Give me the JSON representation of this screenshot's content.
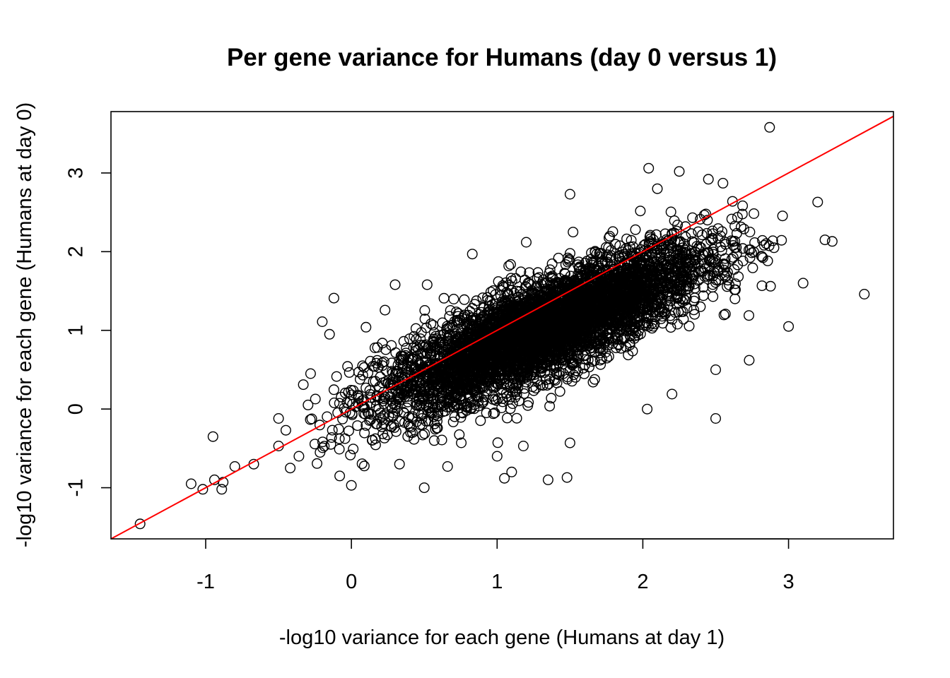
{
  "chart_data": {
    "type": "scatter",
    "title": "Per gene variance for Humans (day 0 versus 1)",
    "xlabel": "-log10 variance for each gene (Humans at day 1)",
    "ylabel": "-log10 variance for each gene (Humans at day 0)",
    "xlim": [
      -1.65,
      3.72
    ],
    "ylim": [
      -1.65,
      3.78
    ],
    "x_ticks": [
      "-1",
      "0",
      "1",
      "2",
      "3"
    ],
    "y_ticks": [
      "-1",
      "0",
      "1",
      "2",
      "3"
    ],
    "marker": "open-circle",
    "point_color": "#000000",
    "reference_line": {
      "intercept": 0,
      "slope": 1,
      "color": "#ff0000"
    },
    "grid": false,
    "points": [
      [
        -1.45,
        -1.46
      ],
      [
        -1.1,
        -0.95
      ],
      [
        -1.02,
        -1.02
      ],
      [
        -0.95,
        -0.35
      ],
      [
        -0.94,
        -0.9
      ],
      [
        -0.89,
        -1.02
      ],
      [
        -0.88,
        -0.93
      ],
      [
        -0.8,
        -0.73
      ],
      [
        -0.67,
        -0.7
      ],
      [
        -0.5,
        -0.12
      ],
      [
        -0.5,
        -0.47
      ],
      [
        -0.45,
        -0.27
      ],
      [
        -0.42,
        -0.75
      ],
      [
        -0.36,
        -0.6
      ],
      [
        -0.33,
        0.31
      ],
      [
        -0.28,
        0.45
      ],
      [
        -0.2,
        1.11
      ],
      [
        -0.15,
        0.95
      ],
      [
        -0.12,
        1.41
      ],
      [
        -0.08,
        -0.85
      ],
      [
        -0.05,
        0.01
      ],
      [
        0.0,
        -0.97
      ],
      [
        0.05,
        0.47
      ],
      [
        0.1,
        1.04
      ],
      [
        0.15,
        0.35
      ],
      [
        0.3,
        1.58
      ],
      [
        0.33,
        -0.7
      ],
      [
        0.5,
        -1.0
      ],
      [
        0.52,
        1.58
      ],
      [
        0.66,
        -0.73
      ],
      [
        0.83,
        1.97
      ],
      [
        1.0,
        -0.6
      ],
      [
        1.05,
        -0.88
      ],
      [
        1.1,
        -0.8
      ],
      [
        1.18,
        -0.47
      ],
      [
        1.2,
        2.12
      ],
      [
        1.35,
        -0.9
      ],
      [
        1.48,
        -0.87
      ],
      [
        1.5,
        -0.43
      ],
      [
        1.5,
        2.73
      ],
      [
        2.03,
        0.0
      ],
      [
        2.04,
        3.06
      ],
      [
        2.1,
        2.8
      ],
      [
        2.2,
        0.19
      ],
      [
        2.25,
        3.02
      ],
      [
        2.45,
        2.92
      ],
      [
        2.5,
        -0.12
      ],
      [
        2.5,
        0.5
      ],
      [
        2.55,
        2.87
      ],
      [
        2.73,
        0.62
      ],
      [
        2.87,
        3.58
      ],
      [
        2.9,
        2.05
      ],
      [
        3.0,
        1.05
      ],
      [
        3.1,
        1.6
      ],
      [
        3.2,
        2.63
      ],
      [
        3.25,
        2.15
      ],
      [
        3.3,
        2.13
      ],
      [
        3.52,
        1.46
      ]
    ],
    "cloud": {
      "description_count_estimate": 12000,
      "centroid": [
        1.3,
        1.05
      ],
      "major_axis_end_points": [
        [
          0.1,
          0.2
        ],
        [
          2.6,
          2.0
        ]
      ]
    }
  }
}
